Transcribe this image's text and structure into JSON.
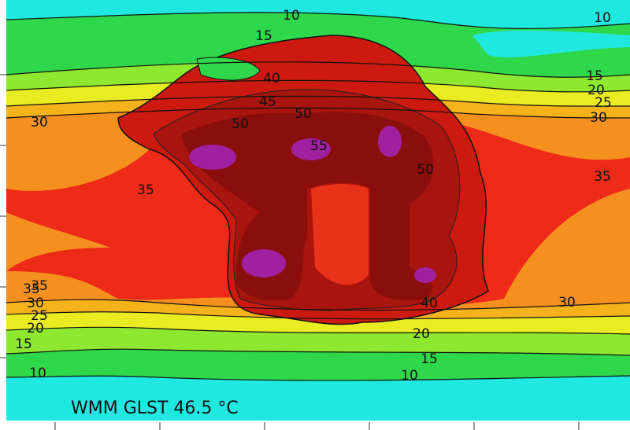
{
  "map": {
    "contour_labels": [
      10,
      10,
      15,
      15,
      20,
      25,
      30,
      30,
      35,
      35,
      40,
      45,
      50,
      50,
      55,
      50,
      35,
      35,
      30,
      25,
      20,
      15,
      10,
      30,
      40,
      20,
      15,
      10
    ],
    "caption": "WMM GLST 46.5 °C"
  }
}
